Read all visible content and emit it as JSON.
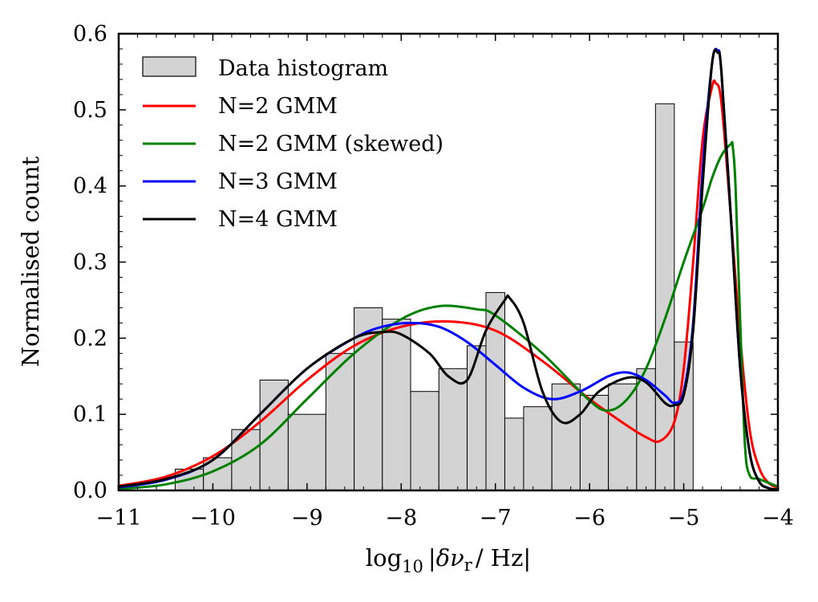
{
  "chart_data": {
    "type": "line",
    "xlabel": "log10 |δνr/ Hz|",
    "xlabel_parts": {
      "log": "log",
      "base": "10",
      "delta": "|δν",
      "sub": "r",
      "unit": "/ Hz|"
    },
    "ylabel": "Normalised count",
    "xlim": [
      -11,
      -4
    ],
    "ylim": [
      0,
      0.6
    ],
    "x_ticks": [
      -11,
      -10,
      -9,
      -8,
      -7,
      -6,
      -5,
      -4
    ],
    "x_tick_labels": [
      "−11",
      "−10",
      "−9",
      "−8",
      "−7",
      "−6",
      "−5",
      "−4"
    ],
    "y_ticks": [
      0.0,
      0.1,
      0.2,
      0.3,
      0.4,
      0.5,
      0.6
    ],
    "y_tick_labels": [
      "0.0",
      "0.1",
      "0.2",
      "0.3",
      "0.4",
      "0.5",
      "0.6"
    ],
    "legend_position": "top-left",
    "grid": false,
    "histogram": {
      "name": "Data histogram",
      "color": "#d3d3d3",
      "edges": [
        -10.4,
        -10.1,
        -9.8,
        -9.5,
        -9.2,
        -8.8,
        -8.5,
        -8.2,
        -7.9,
        -7.6,
        -7.3,
        -7.1,
        -6.9,
        -6.7,
        -6.4,
        -6.1,
        -5.8,
        -5.5,
        -5.3,
        -5.1,
        -4.9,
        -4.6,
        -4.25
      ],
      "counts": [
        0.028,
        0.043,
        0.08,
        0.145,
        0.1,
        0.18,
        0.24,
        0.225,
        0.13,
        0.16,
        0.19,
        0.26,
        0.095,
        0.11,
        0.14,
        0.125,
        0.14,
        0.16,
        0.508,
        0.195,
        0.0,
        0.0
      ]
    },
    "series": [
      {
        "name": "N=2 GMM",
        "color": "#ff0000",
        "x": [
          -11,
          -10.5,
          -10.0,
          -9.5,
          -9.0,
          -8.5,
          -8.0,
          -7.5,
          -7.0,
          -6.5,
          -6.0,
          -5.6,
          -5.4,
          -5.25,
          -5.1,
          -5.0,
          -4.9,
          -4.8,
          -4.7,
          -4.66,
          -4.6,
          -4.5,
          -4.4,
          -4.3,
          -4.2,
          -4.1,
          -4.0
        ],
        "y": [
          0.006,
          0.018,
          0.045,
          0.09,
          0.145,
          0.19,
          0.215,
          0.222,
          0.21,
          0.17,
          0.12,
          0.085,
          0.07,
          0.065,
          0.09,
          0.16,
          0.3,
          0.46,
          0.53,
          0.535,
          0.51,
          0.36,
          0.2,
          0.08,
          0.03,
          0.01,
          0.003
        ]
      },
      {
        "name": "N=2 GMM (skewed)",
        "color": "#008000",
        "x": [
          -11,
          -10.5,
          -10.0,
          -9.5,
          -9.0,
          -8.5,
          -8.0,
          -7.6,
          -7.2,
          -7.0,
          -6.5,
          -6.0,
          -5.8,
          -5.6,
          -5.4,
          -5.2,
          -5.0,
          -4.8,
          -4.7,
          -4.6,
          -4.5,
          -4.48,
          -4.45,
          -4.4,
          -4.35,
          -4.3,
          -4.2,
          -4.0
        ],
        "y": [
          0.002,
          0.008,
          0.025,
          0.06,
          0.12,
          0.18,
          0.225,
          0.242,
          0.238,
          0.23,
          0.18,
          0.118,
          0.105,
          0.12,
          0.16,
          0.225,
          0.3,
          0.37,
          0.41,
          0.44,
          0.455,
          0.452,
          0.4,
          0.22,
          0.06,
          0.02,
          0.015,
          0.005
        ]
      },
      {
        "name": "N=3 GMM",
        "color": "#0000ff",
        "x": [
          -11,
          -10.5,
          -10.0,
          -9.5,
          -9.0,
          -8.5,
          -8.2,
          -7.9,
          -7.6,
          -7.3,
          -7.0,
          -6.7,
          -6.4,
          -6.1,
          -5.8,
          -5.6,
          -5.4,
          -5.2,
          -5.1,
          -5.0,
          -4.9,
          -4.8,
          -4.7,
          -4.64,
          -4.6,
          -4.5,
          -4.4,
          -4.3,
          -4.2,
          -4.1,
          -4.0
        ],
        "y": [
          0.004,
          0.014,
          0.04,
          0.1,
          0.16,
          0.2,
          0.215,
          0.22,
          0.215,
          0.195,
          0.165,
          0.135,
          0.12,
          0.13,
          0.15,
          0.155,
          0.145,
          0.125,
          0.115,
          0.13,
          0.22,
          0.42,
          0.56,
          0.578,
          0.55,
          0.36,
          0.16,
          0.05,
          0.012,
          0.003,
          0.001
        ]
      },
      {
        "name": "N=4 GMM",
        "color": "#000000",
        "x": [
          -11,
          -10.5,
          -10.0,
          -9.5,
          -9.0,
          -8.5,
          -8.2,
          -8.0,
          -7.7,
          -7.5,
          -7.3,
          -7.1,
          -6.9,
          -6.85,
          -6.7,
          -6.5,
          -6.3,
          -6.1,
          -5.9,
          -5.6,
          -5.4,
          -5.2,
          -5.1,
          -5.0,
          -4.9,
          -4.8,
          -4.7,
          -4.64,
          -4.6,
          -4.5,
          -4.4,
          -4.3,
          -4.2,
          -4.1,
          -4.0
        ],
        "y": [
          0.005,
          0.015,
          0.04,
          0.1,
          0.16,
          0.2,
          0.208,
          0.205,
          0.18,
          0.15,
          0.145,
          0.21,
          0.25,
          0.253,
          0.22,
          0.13,
          0.09,
          0.1,
          0.13,
          0.148,
          0.142,
          0.115,
          0.112,
          0.125,
          0.21,
          0.4,
          0.56,
          0.575,
          0.55,
          0.36,
          0.16,
          0.05,
          0.012,
          0.003,
          0.001
        ]
      }
    ]
  }
}
